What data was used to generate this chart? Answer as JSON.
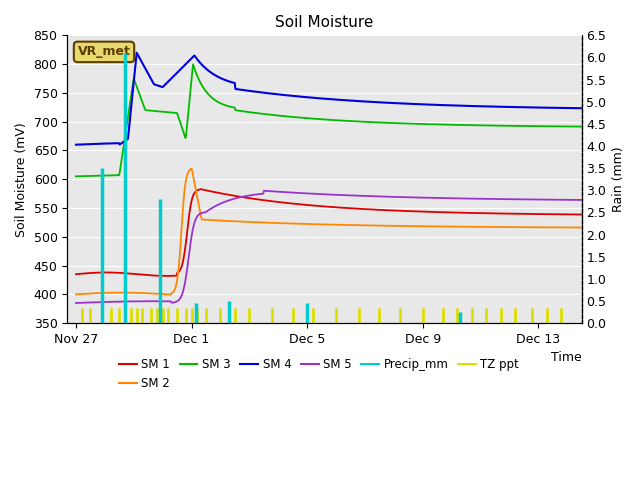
{
  "title": "Soil Moisture",
  "xlabel": "Time",
  "ylabel_left": "Soil Moisture (mV)",
  "ylabel_right": "Rain (mm)",
  "ylim_left": [
    350,
    850
  ],
  "ylim_right": [
    0.0,
    6.5
  ],
  "yticks_left": [
    350,
    400,
    450,
    500,
    550,
    600,
    650,
    700,
    750,
    800,
    850
  ],
  "yticks_right": [
    0.0,
    0.5,
    1.0,
    1.5,
    2.0,
    2.5,
    3.0,
    3.5,
    4.0,
    4.5,
    5.0,
    5.5,
    6.0,
    6.5
  ],
  "bg_color": "#e8e8e8",
  "label_box_text": "VR_met",
  "label_box_bg": "#e8d870",
  "label_box_border": "#5c3d00",
  "legend_entries": [
    "SM 1",
    "SM 2",
    "SM 3",
    "SM 4",
    "SM 5",
    "Precip_mm",
    "TZ ppt"
  ],
  "legend_colors": [
    "#dd0000",
    "#ff8800",
    "#00bb00",
    "#0000dd",
    "#9933cc",
    "#00cccc",
    "#dddd00"
  ],
  "sm1_color": "#dd0000",
  "sm2_color": "#ff8800",
  "sm3_color": "#00bb00",
  "sm4_color": "#0000dd",
  "sm5_color": "#9933cc",
  "precip_color": "#00cccc",
  "tzppt_color": "#dddd00",
  "xtick_positions": [
    0,
    4,
    8,
    12,
    16
  ],
  "xtick_labels": [
    "Nov 27",
    "Dec 1",
    "Dec 5",
    "Dec 9",
    "Dec 13"
  ],
  "xlim": [
    -0.3,
    17.5
  ]
}
